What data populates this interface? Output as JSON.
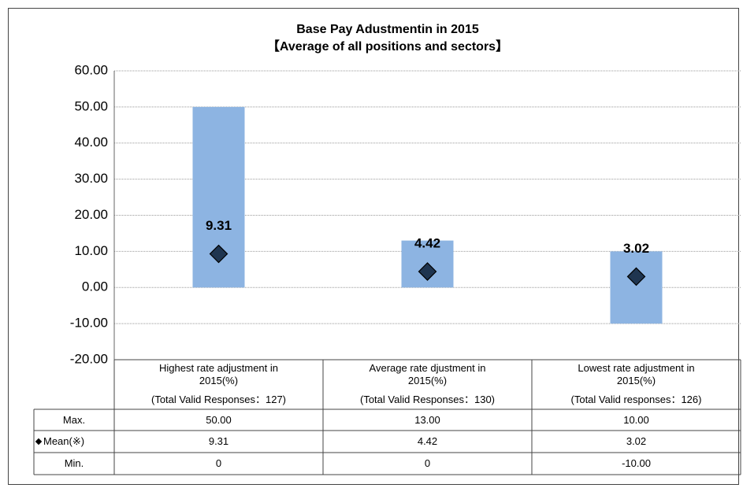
{
  "chart_data": {
    "type": "floating-bar",
    "title": "Base Pay Adustmentin in 2015",
    "subtitle": "【Average of all positions and sectors】",
    "categories": [
      "Highest rate adjustment in 2015(%)",
      "Average rate djustment in 2015(%)",
      "Lowest rate adjustment in 2015(%)"
    ],
    "responses": [
      "(Total Valid Responses：127)",
      "(Total Valid Responses：130)",
      "(Total Valid responses：126)"
    ],
    "series": [
      {
        "name": "Max.",
        "values": [
          50,
          13,
          10
        ],
        "value_labels": [
          "50.00",
          "13.00",
          "10.00"
        ]
      },
      {
        "name": "Mean(※)",
        "values": [
          9.31,
          4.42,
          3.02
        ],
        "color": "#1f3550"
      },
      {
        "name": "Min.",
        "values": [
          0,
          0,
          -10
        ],
        "value_labels": [
          "0",
          "0",
          "-10.00"
        ]
      }
    ],
    "color": "#8db4e2",
    "ylim": [
      -20,
      60
    ],
    "yticks": [
      {
        "value": -20,
        "label": "-20.00"
      },
      {
        "value": -10,
        "label": "-10.00"
      },
      {
        "value": 0,
        "label": "0.00"
      },
      {
        "value": 10,
        "label": "10.00"
      },
      {
        "value": 20,
        "label": "20.00"
      },
      {
        "value": 30,
        "label": "30.00"
      },
      {
        "value": 40,
        "label": "40.00"
      },
      {
        "value": 50,
        "label": "50.00"
      },
      {
        "value": 60,
        "label": "60.00"
      }
    ],
    "grid": true
  }
}
